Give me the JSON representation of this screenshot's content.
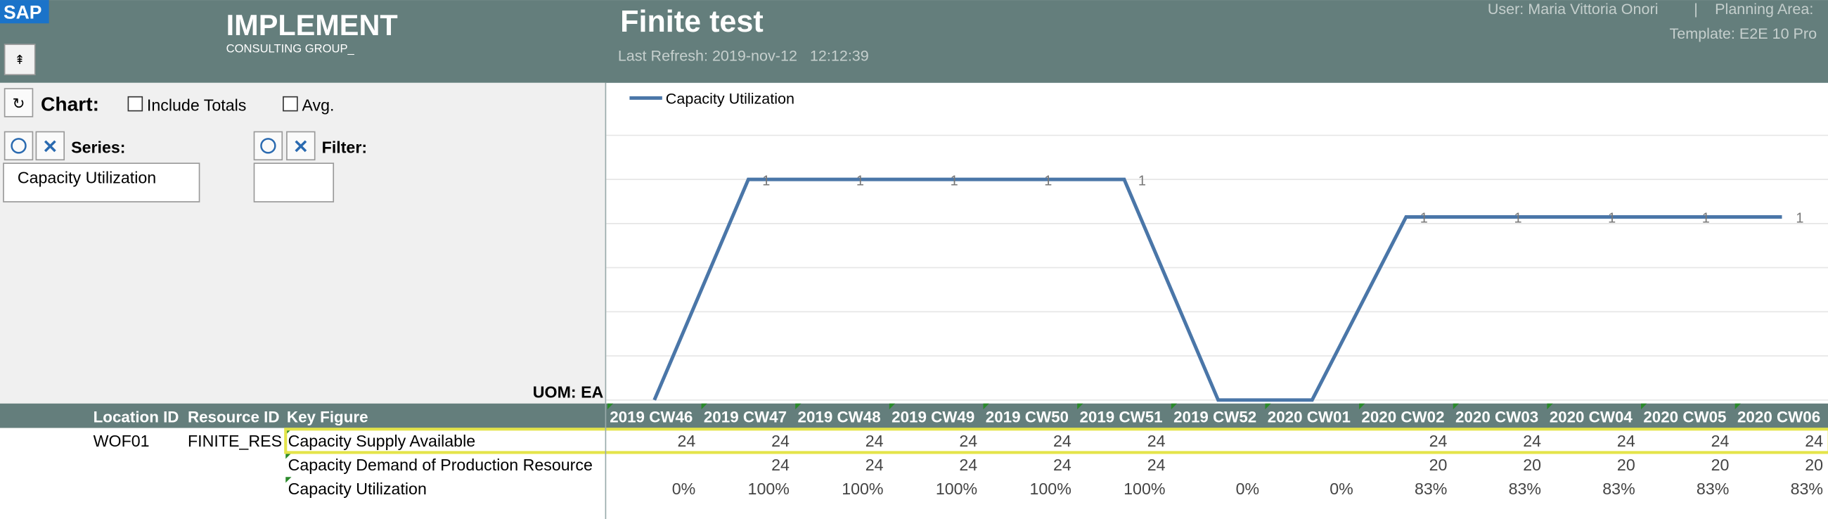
{
  "header": {
    "logo": "SAP",
    "company": "IMPLEMENT",
    "company_sub": "CONSULTING GROUP_",
    "title": "Finite test",
    "last_refresh": "Last Refresh: 2019-nov-12   12:12:39",
    "user": "User: Maria Vittoria Onori",
    "separator": "|",
    "planning_area": "Planning Area:",
    "template": "Template: E2E 10 Pro"
  },
  "controls": {
    "chart_label": "Chart:",
    "include_totals": "Include Totals",
    "avg": "Avg.",
    "series_label": "Series:",
    "series_items": [
      "Capacity Utilization"
    ],
    "filter_label": "Filter:",
    "uom": "UOM: EA"
  },
  "chart_data": {
    "type": "line",
    "series": [
      {
        "name": "Capacity Utilization",
        "color": "#4a76a8",
        "values": [
          0,
          1,
          1,
          1,
          1,
          1,
          0,
          0,
          0.83,
          0.83,
          0.83,
          0.83,
          0.83
        ],
        "value_labels": [
          null,
          "1",
          "1",
          "1",
          "1",
          "1",
          null,
          null,
          "1",
          "1",
          "1",
          "1",
          "1"
        ]
      }
    ],
    "ylim": [
      0,
      1.2
    ],
    "yticks": [
      0,
      0.2,
      0.4,
      0.6,
      0.8,
      1,
      1.2
    ],
    "grid": true,
    "legend": "top-left"
  },
  "table": {
    "columns": [
      "Location ID",
      "Resource ID",
      "Key Figure",
      "2019 CW46",
      "2019 CW47",
      "2019 CW48",
      "2019 CW49",
      "2019 CW50",
      "2019 CW51",
      "2019 CW52",
      "2020 CW01",
      "2020 CW02",
      "2020 CW03",
      "2020 CW04",
      "2020 CW05",
      "2020 CW06"
    ],
    "rows": [
      [
        "WOF01",
        "FINITE_RES",
        "Capacity Supply Available",
        24,
        24,
        24,
        24,
        24,
        24,
        null,
        null,
        24,
        24,
        24,
        24,
        24
      ],
      [
        null,
        null,
        "Capacity Demand of Production Resource",
        null,
        24,
        24,
        24,
        24,
        24,
        null,
        null,
        20,
        20,
        20,
        20,
        20
      ],
      [
        null,
        null,
        "Capacity Utilization",
        "0%",
        "100%",
        "100%",
        "100%",
        "100%",
        "100%",
        "0%",
        "0%",
        "83%",
        "83%",
        "83%",
        "83%",
        "83%"
      ]
    ]
  }
}
